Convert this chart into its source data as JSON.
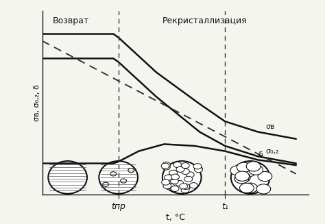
{
  "title": "",
  "xlabel": "t, °C",
  "ylabel": "σв, σ₀,₂, δ",
  "bg_color": "#f5f5f0",
  "text_vozvrat": "Возврат",
  "text_recryst": "Рекристаллизация",
  "label_sigma_v": "σв",
  "label_sigma_02": "σ₀,₂",
  "label_delta": "δ",
  "label_tpr": "tпр",
  "label_t1": "t₁",
  "t_pr": 0.3,
  "t_1": 0.72,
  "sigma_v": {
    "x": [
      0,
      0.28,
      0.3,
      0.45,
      0.62,
      0.72,
      0.85,
      1.0
    ],
    "y": [
      0.92,
      0.92,
      0.9,
      0.7,
      0.52,
      0.42,
      0.36,
      0.32
    ]
  },
  "sigma_02": {
    "x": [
      0,
      0.28,
      0.3,
      0.45,
      0.62,
      0.72,
      0.85,
      1.0
    ],
    "y": [
      0.78,
      0.78,
      0.76,
      0.56,
      0.36,
      0.28,
      0.22,
      0.18
    ]
  },
  "delta": {
    "x": [
      0,
      0.28,
      0.3,
      0.38,
      0.48,
      0.6,
      0.72,
      0.85,
      1.0
    ],
    "y": [
      0.18,
      0.18,
      0.19,
      0.25,
      0.29,
      0.28,
      0.25,
      0.2,
      0.17
    ]
  },
  "dashed_line": {
    "x": [
      0.0,
      1.0
    ],
    "y": [
      0.88,
      0.12
    ]
  },
  "line_color": "#111111",
  "dashed_color": "#333333"
}
